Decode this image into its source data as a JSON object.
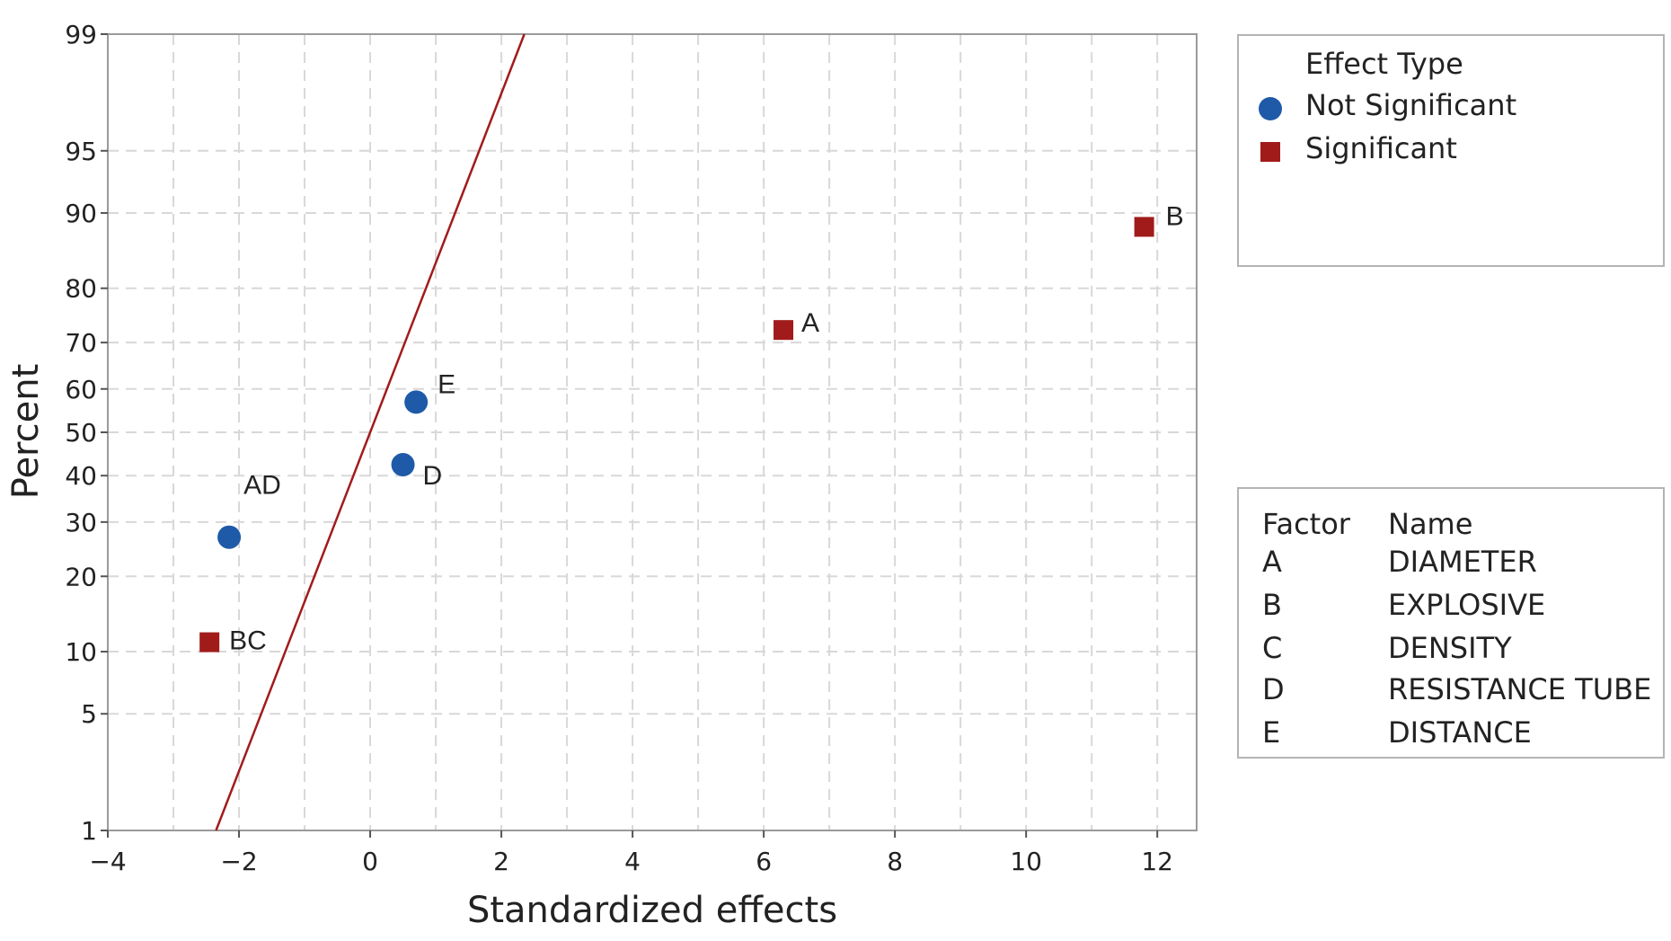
{
  "chart_data": {
    "type": "scatter",
    "title": "",
    "xlabel": "Standardized effects",
    "ylabel": "Percent",
    "xlim": [
      -4,
      12.6
    ],
    "ylim": [
      1,
      99
    ],
    "xticks": [
      -4,
      -2,
      0,
      2,
      4,
      6,
      8,
      10,
      12
    ],
    "yticks": [
      1,
      5,
      10,
      20,
      30,
      40,
      50,
      60,
      70,
      80,
      90,
      95,
      99
    ],
    "xtick_labels": [
      "−4",
      "−2",
      "0",
      "2",
      "4",
      "6",
      "8",
      "10",
      "12"
    ],
    "ytick_labels": [
      "1",
      "5",
      "10",
      "20",
      "30",
      "40",
      "50",
      "60",
      "70",
      "80",
      "90",
      "95",
      "99"
    ],
    "grid": true,
    "y_scale": "normal-probability",
    "reference_line": {
      "x": [
        -2.35,
        2.35
      ],
      "y": [
        1,
        99
      ],
      "color": "#a11b1b"
    },
    "points": [
      {
        "label": "BC",
        "x": -2.45,
        "y": 11,
        "type": "Significant"
      },
      {
        "label": "AD",
        "x": -2.15,
        "y": 27,
        "type": "Not Significant"
      },
      {
        "label": "D",
        "x": 0.5,
        "y": 42.5,
        "type": "Not Significant"
      },
      {
        "label": "E",
        "x": 0.7,
        "y": 57,
        "type": "Not Significant"
      },
      {
        "label": "A",
        "x": 6.3,
        "y": 72.5,
        "type": "Significant"
      },
      {
        "label": "B",
        "x": 11.8,
        "y": 88.5,
        "type": "Significant"
      }
    ],
    "colors": {
      "Not Significant": "#1f5aa8",
      "Significant": "#a11b1b",
      "grid": "#d8d8d8"
    }
  },
  "legend": {
    "title": "Effect Type",
    "items": [
      {
        "label": "Not Significant",
        "marker": "circle"
      },
      {
        "label": "Significant",
        "marker": "square"
      }
    ]
  },
  "factors": {
    "header_factor": "Factor",
    "header_name": "Name",
    "rows": [
      {
        "factor": "A",
        "name": "DIAMETER"
      },
      {
        "factor": "B",
        "name": "EXPLOSIVE"
      },
      {
        "factor": "C",
        "name": "DENSITY"
      },
      {
        "factor": "D",
        "name": "RESISTANCE TUBE"
      },
      {
        "factor": "E",
        "name": "DISTANCE"
      }
    ]
  }
}
